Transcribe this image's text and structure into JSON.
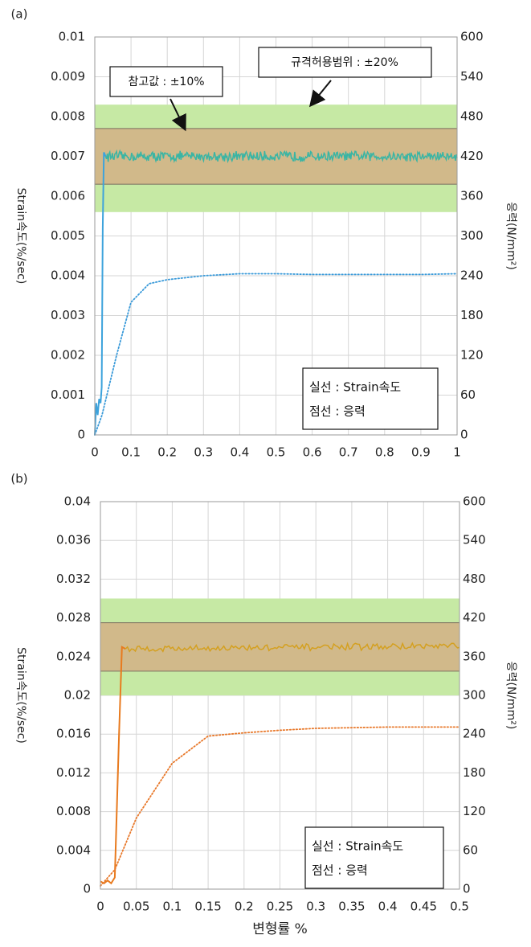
{
  "chart_data": [
    {
      "type": "line",
      "panel_label": "(a)",
      "x": {
        "ticks": [
          "0",
          "0.1",
          "0.2",
          "0.3",
          "0.4",
          "0.5",
          "0.6",
          "0.7",
          "0.8",
          "0.9",
          "1"
        ],
        "lim": [
          0,
          1
        ]
      },
      "y_left": {
        "label": "Strain속도(%/sec)",
        "ticks": [
          "0",
          "0.001",
          "0.002",
          "0.003",
          "0.004",
          "0.005",
          "0.006",
          "0.007",
          "0.008",
          "0.009",
          "0.01"
        ],
        "lim": [
          0,
          0.01
        ]
      },
      "y_right": {
        "label": "응력(N/mm²)",
        "ticks": [
          "0",
          "60",
          "120",
          "180",
          "240",
          "300",
          "360",
          "420",
          "480",
          "540",
          "600"
        ],
        "lim": [
          0,
          600
        ]
      },
      "bands": [
        {
          "label": "규격허용범위 : ±20%",
          "y0": 0.0056,
          "y1": 0.0083,
          "color": "#c6e9a4"
        },
        {
          "label": "참고값 : ±10%",
          "y0": 0.0063,
          "y1": 0.0077,
          "color": "#d1b98a"
        }
      ],
      "series": [
        {
          "style": "solid",
          "axis": "left",
          "color": "#3ab5a4",
          "ramp_color": "#3da3dc",
          "points": [
            [
              0,
              0
            ],
            [
              0.004,
              0.0008
            ],
            [
              0.008,
              0.0005
            ],
            [
              0.012,
              0.0009
            ],
            [
              0.016,
              0.0008
            ],
            [
              0.019,
              0.0012
            ],
            [
              0.022,
              0.0052
            ],
            [
              0.025,
              0.0071
            ],
            [
              0.03,
              0.007
            ],
            [
              1,
              0.007
            ]
          ],
          "noise": 0.00011
        },
        {
          "style": "dotted",
          "axis": "right",
          "color": "#3a9ad9",
          "points": [
            [
              0,
              0
            ],
            [
              0.02,
              30
            ],
            [
              0.06,
              120
            ],
            [
              0.1,
              200
            ],
            [
              0.15,
              228
            ],
            [
              0.2,
              234
            ],
            [
              0.3,
              240
            ],
            [
              0.4,
              243
            ],
            [
              0.5,
              243
            ],
            [
              0.6,
              242
            ],
            [
              0.7,
              242
            ],
            [
              0.8,
              242
            ],
            [
              0.9,
              242
            ],
            [
              1,
              243
            ]
          ]
        }
      ],
      "legend": {
        "line1": "실선 : Strain속도",
        "line2": "점선 : 응력"
      },
      "grid": true
    },
    {
      "type": "line",
      "panel_label": "(b)",
      "x": {
        "label": "변형률 %",
        "ticks": [
          "0",
          "0.05",
          "0.1",
          "0.15",
          "0.2",
          "0.25",
          "0.3",
          "0.35",
          "0.4",
          "0.45",
          "0.5"
        ],
        "lim": [
          0,
          0.5
        ]
      },
      "y_left": {
        "label": "Strain속도(%/sec)",
        "ticks": [
          "0",
          "0.004",
          "0.008",
          "0.012",
          "0.016",
          "0.02",
          "0.024",
          "0.028",
          "0.032",
          "0.036",
          "0.04"
        ],
        "lim": [
          0,
          0.04
        ]
      },
      "y_right": {
        "label": "응력(N/mm²)",
        "ticks": [
          "0",
          "60",
          "120",
          "180",
          "240",
          "300",
          "360",
          "420",
          "480",
          "540",
          "600"
        ],
        "lim": [
          0,
          600
        ]
      },
      "bands": [
        {
          "y0": 0.02,
          "y1": 0.03,
          "color": "#c6e9a4"
        },
        {
          "y0": 0.0225,
          "y1": 0.0275,
          "color": "#d1b98a"
        }
      ],
      "series": [
        {
          "style": "solid",
          "axis": "left",
          "color": "#d4a020",
          "ramp_color": "#e87a1e",
          "points": [
            [
              0,
              0.0008
            ],
            [
              0.005,
              0.0006
            ],
            [
              0.01,
              0.0009
            ],
            [
              0.015,
              0.0006
            ],
            [
              0.02,
              0.0012
            ],
            [
              0.026,
              0.016
            ],
            [
              0.03,
              0.025
            ],
            [
              0.035,
              0.0248
            ],
            [
              0.5,
              0.0251
            ]
          ],
          "noise": 0.0003
        },
        {
          "style": "dotted",
          "axis": "right",
          "color": "#e8782a",
          "points": [
            [
              0,
              5
            ],
            [
              0.02,
              30
            ],
            [
              0.05,
              110
            ],
            [
              0.1,
              195
            ],
            [
              0.15,
              237
            ],
            [
              0.2,
              242
            ],
            [
              0.25,
              246
            ],
            [
              0.3,
              249
            ],
            [
              0.35,
              250
            ],
            [
              0.4,
              251
            ],
            [
              0.45,
              251
            ],
            [
              0.5,
              251
            ]
          ]
        }
      ],
      "legend": {
        "line1": "실선 : Strain속도",
        "line2": "점선 : 응력"
      },
      "grid": true
    }
  ]
}
